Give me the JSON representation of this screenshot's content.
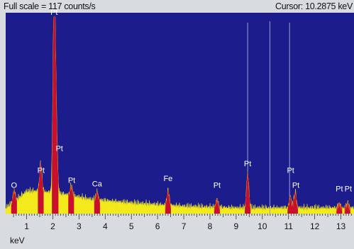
{
  "header": {
    "full_scale": "Full scale = 117  counts/s",
    "cursor": "Cursor: 10.2875 keV"
  },
  "colors": {
    "plot_bg": "#1c1c8c",
    "spectrum": "#f2ea1a",
    "peak_fill": "#c8102e",
    "cursor_line": "#9aa0d0",
    "label": "#ffffff",
    "frame": "#d8dbe0"
  },
  "chart_data": {
    "type": "area",
    "title": "",
    "xlabel": "keV",
    "ylabel": "",
    "xlim": [
      0.2,
      13.5
    ],
    "ylim": [
      0,
      117
    ],
    "x_ticks": [
      1,
      2,
      3,
      4,
      5,
      6,
      7,
      8,
      9,
      10,
      11,
      12,
      13
    ],
    "cursor_x": 10.2875,
    "marker_lines": [
      9.44,
      11.04
    ],
    "background": [
      [
        0.2,
        3
      ],
      [
        0.45,
        6
      ],
      [
        0.7,
        9
      ],
      [
        1.0,
        13
      ],
      [
        1.5,
        13
      ],
      [
        2.5,
        11
      ],
      [
        3.5,
        8
      ],
      [
        5.0,
        6
      ],
      [
        7.0,
        4
      ],
      [
        9.0,
        3
      ],
      [
        11.0,
        3
      ],
      [
        13.5,
        3
      ]
    ],
    "series": [
      {
        "name": "Pt",
        "peaks": [
          {
            "x": 1.54,
            "y": 17
          },
          {
            "x": 2.05,
            "y": 117
          },
          {
            "x": 2.13,
            "y": 40
          },
          {
            "x": 2.7,
            "y": 6
          },
          {
            "x": 8.27,
            "y": 5
          },
          {
            "x": 9.44,
            "y": 21
          },
          {
            "x": 11.07,
            "y": 7
          },
          {
            "x": 11.25,
            "y": 10
          },
          {
            "x": 12.94,
            "y": 3
          },
          {
            "x": 13.25,
            "y": 3
          }
        ]
      },
      {
        "name": "O",
        "peaks": [
          {
            "x": 0.52,
            "y": 7
          }
        ]
      },
      {
        "name": "Ca",
        "peaks": [
          {
            "x": 3.69,
            "y": 5
          }
        ]
      },
      {
        "name": "Fe",
        "peaks": [
          {
            "x": 6.4,
            "y": 9
          }
        ]
      }
    ],
    "annotations": [
      {
        "text": "Pt",
        "x": 2.05,
        "y": 117
      },
      {
        "text": "Pt",
        "x": 2.25,
        "y": 36
      },
      {
        "text": "O",
        "x": 0.52,
        "y": 14
      },
      {
        "text": "Pt",
        "x": 1.55,
        "y": 23
      },
      {
        "text": "Pt",
        "x": 2.72,
        "y": 17
      },
      {
        "text": "Ca",
        "x": 3.69,
        "y": 15
      },
      {
        "text": "Fe",
        "x": 6.4,
        "y": 18
      },
      {
        "text": "Pt",
        "x": 8.27,
        "y": 14
      },
      {
        "text": "Pt",
        "x": 9.44,
        "y": 27
      },
      {
        "text": "Pt",
        "x": 11.08,
        "y": 23
      },
      {
        "text": "Pt",
        "x": 11.28,
        "y": 14
      },
      {
        "text": "Pt",
        "x": 12.94,
        "y": 12
      },
      {
        "text": "Pt",
        "x": 13.28,
        "y": 12
      }
    ]
  }
}
